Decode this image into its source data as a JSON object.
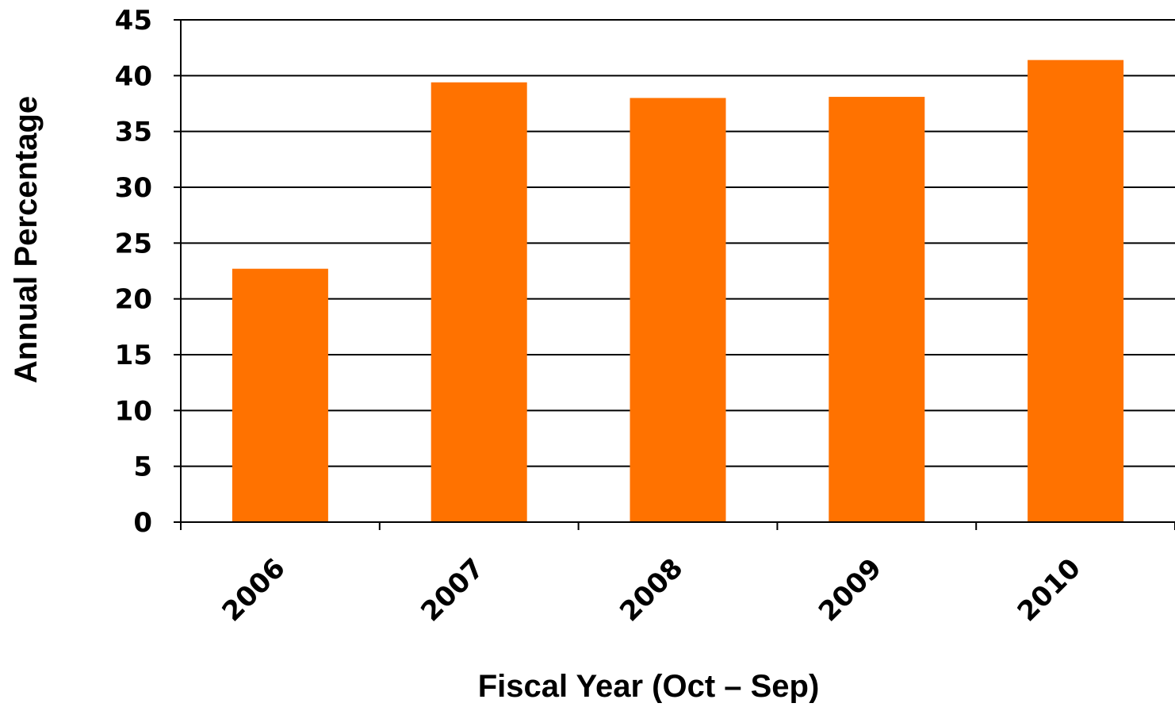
{
  "chart_data": {
    "type": "bar",
    "categories": [
      "2006",
      "2007",
      "2008",
      "2009",
      "2010"
    ],
    "values": [
      22.7,
      39.4,
      38.0,
      38.1,
      41.4
    ],
    "xlabel": "Fiscal Year (Oct – Sep)",
    "ylabel": "Annual Percentage",
    "ylim": [
      0,
      45
    ],
    "yticks": [
      "0",
      "5",
      "10",
      "15",
      "20",
      "25",
      "30",
      "35",
      "40",
      "45"
    ],
    "grid": true,
    "legend": "none",
    "bar_color": "#FF7200"
  }
}
